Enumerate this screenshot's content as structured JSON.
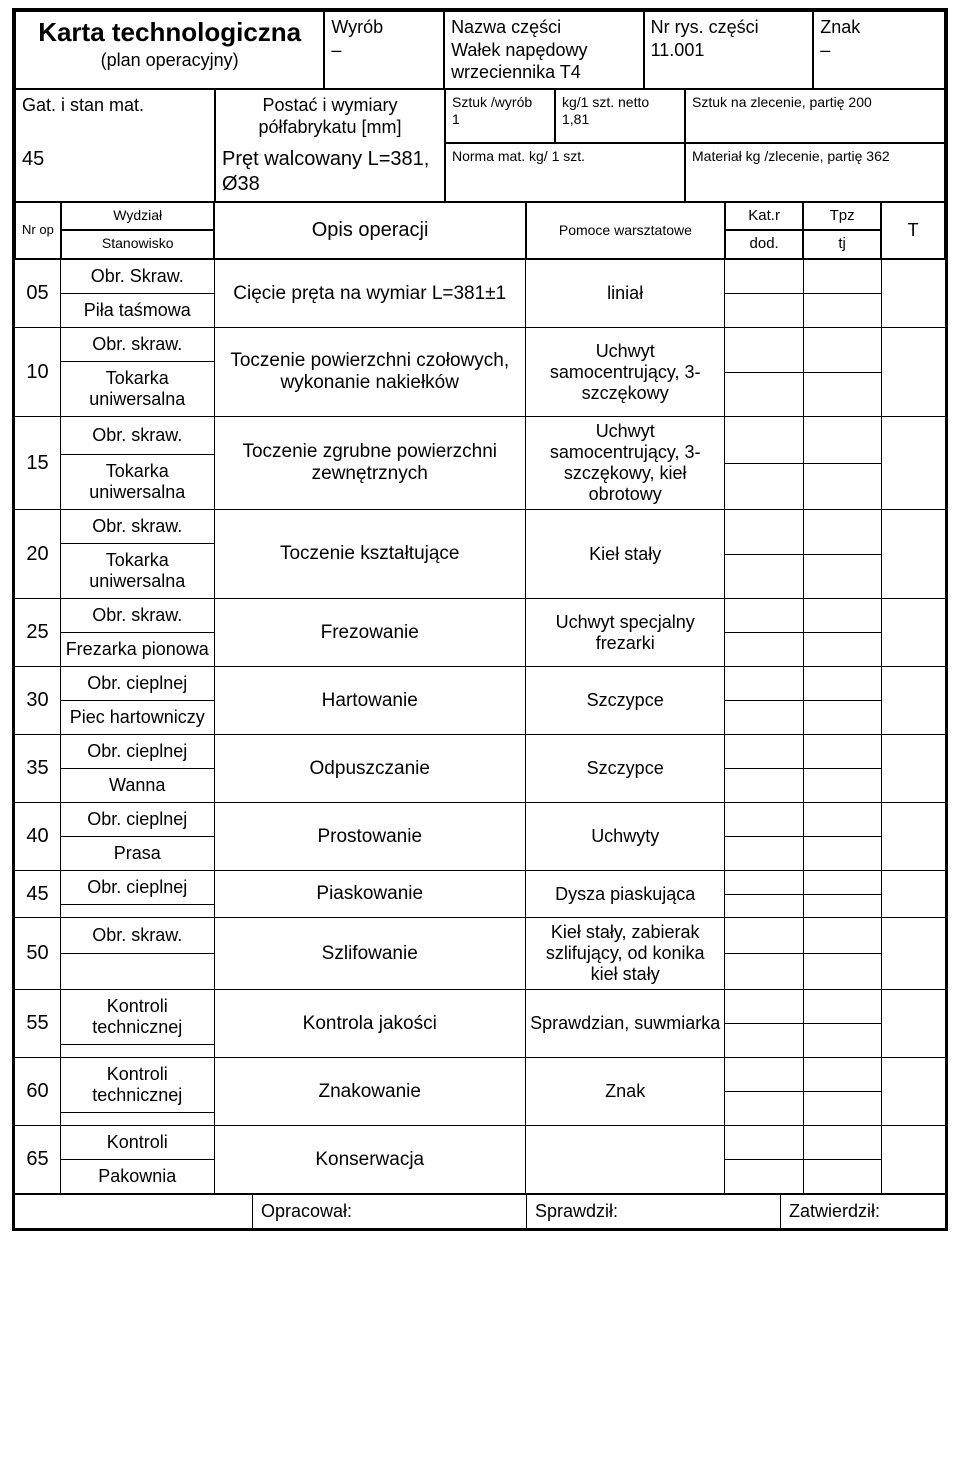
{
  "header": {
    "title": "Karta technologiczna",
    "subtitle": "(plan operacyjny)",
    "wyrob_label": "Wyrób",
    "wyrob_value": "–",
    "nazwa_label": "Nazwa części",
    "nazwa_value": "Wałek napędowy wrzeciennika T4",
    "nrrys_label": "Nr rys. części",
    "nrrys_value": "11.001",
    "znak_label": "Znak",
    "znak_value": "–",
    "gat_label": "Gat. i stan mat.",
    "gat_value": "45",
    "post_label": "Postać i wymiary półfabrykatu [mm]",
    "post_value": "Pręt walcowany L=381, Ø38",
    "sztw_label": "Sztuk /wyrób",
    "sztw_value": "1",
    "kgn_label": "kg/1 szt. netto",
    "kgn_value": "1,81",
    "szz_label": "Sztuk na zlecenie, partię 200",
    "norm_label": "Norma mat. kg/ 1 szt.",
    "mat_label": "Materiał kg /zlecenie, partię 362"
  },
  "subheader": {
    "nr": "Nr op",
    "wydzial": "Wydział",
    "stanowisko": "Stanowisko",
    "opis": "Opis operacji",
    "pomoce": "Pomoce warsztatowe",
    "katr": "Kat.r",
    "tpz": "Tpz",
    "dod": "dod.",
    "tj": "tj",
    "t": "T"
  },
  "ops": [
    {
      "nr": "05",
      "wyd": "Obr. Skraw.",
      "stan": "Piła taśmowa",
      "desc": "Cięcie pręta na wymiar L=381±1",
      "pom": "liniał"
    },
    {
      "nr": "10",
      "wyd": "Obr. skraw.",
      "stan": "Tokarka uniwersalna",
      "desc": "Toczenie powierzchni czołowych, wykonanie nakiełków",
      "pom": "Uchwyt samocentrujący, 3-szczękowy"
    },
    {
      "nr": "15",
      "wyd": "Obr. skraw.",
      "stan": "Tokarka uniwersalna",
      "desc": "Toczenie zgrubne powierzchni zewnętrznych",
      "pom": "Uchwyt samocentrujący, 3-szczękowy, kieł obrotowy"
    },
    {
      "nr": "20",
      "wyd": "Obr. skraw.",
      "stan": "Tokarka uniwersalna",
      "desc": "Toczenie kształtujące",
      "pom": "Kieł stały"
    },
    {
      "nr": "25",
      "wyd": "Obr. skraw.",
      "stan": "Frezarka pionowa",
      "desc": "Frezowanie",
      "pom": "Uchwyt specjalny frezarki"
    },
    {
      "nr": "30",
      "wyd": "Obr. cieplnej",
      "stan": "Piec hartowniczy",
      "desc": "Hartowanie",
      "pom": "Szczypce"
    },
    {
      "nr": "35",
      "wyd": "Obr. cieplnej",
      "stan": "Wanna",
      "desc": "Odpuszczanie",
      "pom": "Szczypce"
    },
    {
      "nr": "40",
      "wyd": "Obr. cieplnej",
      "stan": "Prasa",
      "desc": "Prostowanie",
      "pom": "Uchwyty"
    },
    {
      "nr": "45",
      "wyd": "Obr. cieplnej",
      "stan": "",
      "desc": "Piaskowanie",
      "pom": "Dysza piaskująca"
    },
    {
      "nr": "50",
      "wyd": "Obr. skraw.",
      "stan": "",
      "desc": "Szlifowanie",
      "pom": "Kieł stały, zabierak szlifujący, od konika kieł stały"
    },
    {
      "nr": "55",
      "wyd": "Kontroli technicznej",
      "stan": "",
      "desc": "Kontrola jakości",
      "pom": "Sprawdzian, suwmiarka"
    },
    {
      "nr": "60",
      "wyd": "Kontroli technicznej",
      "stan": "",
      "desc": "Znakowanie",
      "pom": "Znak"
    },
    {
      "nr": "65",
      "wyd": "Kontroli",
      "stan": "Pakownia",
      "desc": "Konserwacja",
      "pom": ""
    }
  ],
  "footer": {
    "opracowal": "Opracował:",
    "sprawdzil": "Sprawdził:",
    "zatwierdzil": "Zatwierdził:"
  }
}
